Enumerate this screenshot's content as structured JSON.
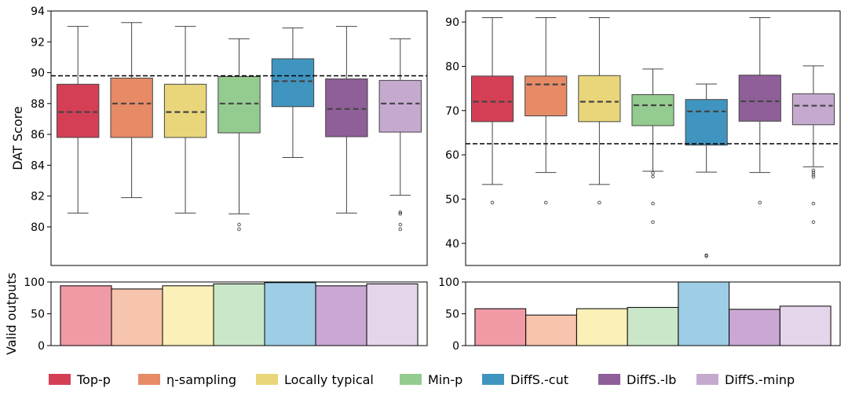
{
  "chart_data": [
    {
      "type": "box",
      "panel": "top-left",
      "ylabel": "DAT Score",
      "ylim": [
        77.5,
        94
      ],
      "yticks": [
        80,
        82,
        84,
        86,
        88,
        90,
        92,
        94
      ],
      "reference_line": 89.8,
      "series": [
        {
          "name": "Top-p",
          "color": "#d43f56",
          "whislo": 80.9,
          "q1": 85.8,
          "med": 87.45,
          "q3": 89.25,
          "whishi": 93.0,
          "fliers": []
        },
        {
          "name": "η-sampling",
          "color": "#e68b66",
          "whislo": 81.9,
          "q1": 85.8,
          "med": 88.0,
          "q3": 89.65,
          "whishi": 93.25,
          "fliers": []
        },
        {
          "name": "Locally typical",
          "color": "#e9d67a",
          "whislo": 80.9,
          "q1": 85.8,
          "med": 87.45,
          "q3": 89.25,
          "whishi": 93.0,
          "fliers": []
        },
        {
          "name": "Min-p",
          "color": "#94cb90",
          "whislo": 80.85,
          "q1": 86.1,
          "med": 88.0,
          "q3": 89.75,
          "whishi": 92.2,
          "fliers": [
            80.15,
            79.85
          ]
        },
        {
          "name": "DiffS.-cut",
          "color": "#3f95c0",
          "whislo": 84.5,
          "q1": 87.8,
          "med": 89.45,
          "q3": 90.9,
          "whishi": 92.9,
          "fliers": []
        },
        {
          "name": "DiffS.-lb",
          "color": "#8e5f98",
          "whislo": 80.9,
          "q1": 85.85,
          "med": 87.65,
          "q3": 89.6,
          "whishi": 93.0,
          "fliers": []
        },
        {
          "name": "DiffS.-minp",
          "color": "#c6a9cf",
          "whislo": 82.05,
          "q1": 86.15,
          "med": 88.0,
          "q3": 89.5,
          "whishi": 92.2,
          "fliers": [
            80.95,
            80.85,
            80.15,
            79.85
          ]
        }
      ]
    },
    {
      "type": "box",
      "panel": "top-right",
      "ylim": [
        35,
        92.5
      ],
      "yticks": [
        40,
        50,
        60,
        70,
        80,
        90
      ],
      "reference_line": 62.5,
      "series": [
        {
          "name": "Top-p",
          "color": "#d43f56",
          "whislo": 53.3,
          "q1": 67.5,
          "med": 72.0,
          "q3": 77.8,
          "whishi": 91.0,
          "fliers": [
            49.2
          ]
        },
        {
          "name": "η-sampling",
          "color": "#e68b66",
          "whislo": 56.0,
          "q1": 68.8,
          "med": 75.9,
          "q3": 77.8,
          "whishi": 91.0,
          "fliers": [
            49.2
          ]
        },
        {
          "name": "Locally typical",
          "color": "#e9d67a",
          "whislo": 53.3,
          "q1": 67.5,
          "med": 72.0,
          "q3": 77.9,
          "whishi": 91.0,
          "fliers": [
            49.2
          ]
        },
        {
          "name": "Min-p",
          "color": "#94cb90",
          "whislo": 56.3,
          "q1": 66.6,
          "med": 71.2,
          "q3": 73.6,
          "whishi": 79.4,
          "fliers": [
            55.9,
            55.1,
            49.0,
            44.8
          ]
        },
        {
          "name": "DiffS.-cut",
          "color": "#3f95c0",
          "whislo": 56.1,
          "q1": 62.2,
          "med": 69.8,
          "q3": 72.5,
          "whishi": 76.0,
          "fliers": [
            37.3,
            37.1
          ]
        },
        {
          "name": "DiffS.-lb",
          "color": "#8e5f98",
          "whislo": 56.0,
          "q1": 67.6,
          "med": 72.1,
          "q3": 78.0,
          "whishi": 91.0,
          "fliers": [
            49.2
          ]
        },
        {
          "name": "DiffS.-minp",
          "color": "#c6a9cf",
          "whislo": 57.3,
          "q1": 66.8,
          "med": 71.1,
          "q3": 73.8,
          "whishi": 80.1,
          "fliers": [
            56.5,
            56.0,
            55.5,
            55.0,
            49.0,
            44.8
          ]
        }
      ]
    },
    {
      "type": "bar",
      "panel": "bottom-left",
      "ylabel": "Valid outputs",
      "ylim": [
        0,
        100
      ],
      "yticks": [
        0,
        50,
        100
      ],
      "categories": [
        "Top-p",
        "η-sampling",
        "Locally typical",
        "Min-p",
        "DiffS.-cut",
        "DiffS.-lb",
        "DiffS.-minp"
      ],
      "values": [
        94,
        89,
        94,
        97,
        99,
        94,
        97
      ],
      "colors": [
        "#f09aa5",
        "#f7c4ad",
        "#faf0b8",
        "#cbe7c9",
        "#9ecde6",
        "#caa8d3",
        "#e4d5ea"
      ]
    },
    {
      "type": "bar",
      "panel": "bottom-right",
      "ylim": [
        0,
        100
      ],
      "yticks": [
        0,
        50,
        100
      ],
      "categories": [
        "Top-p",
        "η-sampling",
        "Locally typical",
        "Min-p",
        "DiffS.-cut",
        "DiffS.-lb",
        "DiffS.-minp"
      ],
      "values": [
        58,
        48,
        58,
        60,
        100,
        57,
        62
      ],
      "colors": [
        "#f09aa5",
        "#f7c4ad",
        "#faf0b8",
        "#cbe7c9",
        "#9ecde6",
        "#caa8d3",
        "#e4d5ea"
      ]
    }
  ],
  "legend": {
    "placement": "bottom",
    "items": [
      {
        "label": "Top-p",
        "color": "#d43f56"
      },
      {
        "label": "η-sampling",
        "color": "#e68b66"
      },
      {
        "label": "Locally typical",
        "color": "#e9d67a"
      },
      {
        "label": "Min-p",
        "color": "#94cb90"
      },
      {
        "label": "DiffS.-cut",
        "color": "#3f95c0"
      },
      {
        "label": "DiffS.-lb",
        "color": "#8e5f98"
      },
      {
        "label": "DiffS.-minp",
        "color": "#c6a9cf"
      }
    ]
  }
}
